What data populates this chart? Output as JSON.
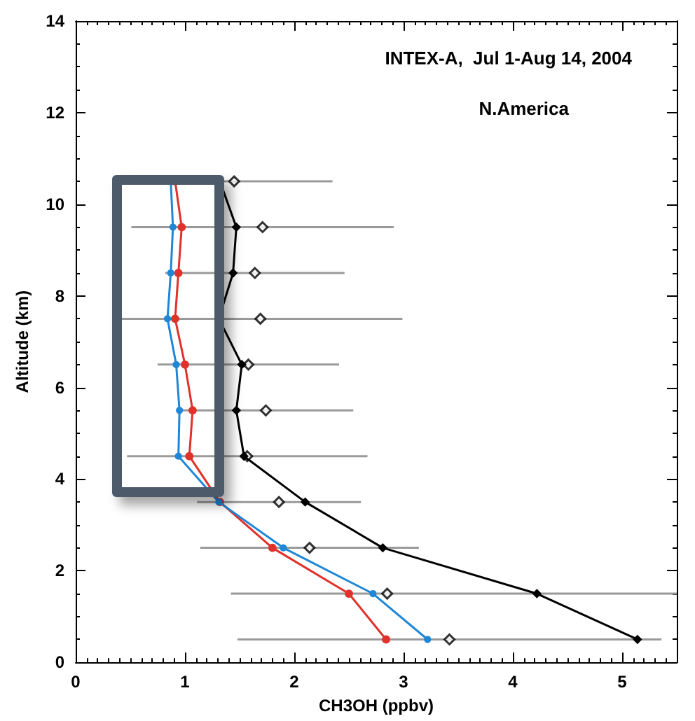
{
  "chart_data": {
    "type": "line",
    "title": "INTEX-A,  Jul 1-Aug 14, 2004",
    "subtitle": "N.America",
    "xlabel": "CH3OH (ppbv)",
    "ylabel": "Altitude (km)",
    "xlim": [
      0,
      5.5
    ],
    "xticks": [
      0,
      1,
      2,
      3,
      4,
      5
    ],
    "ylim": [
      0,
      14
    ],
    "yticks": [
      0,
      2,
      4,
      6,
      8,
      10,
      12,
      14
    ],
    "grid": false,
    "series": [
      {
        "type": "scatter",
        "color": "#000000",
        "marker": "diamond",
        "x": [
          3.42,
          2.85,
          2.14,
          1.86,
          1.57,
          1.74,
          1.58,
          1.69,
          1.64,
          1.71,
          1.45
        ],
        "values": [
          0.5,
          1.5,
          2.5,
          3.5,
          4.5,
          5.5,
          6.5,
          7.5,
          8.5,
          9.5,
          10.5
        ],
        "xerrors": [
          1.94,
          [
            1.42,
            5.5
          ],
          1.0,
          0.75,
          1.1,
          0.8,
          0.83,
          1.3,
          0.82,
          1.2,
          0.9
        ]
      },
      {
        "color": "#000000",
        "marker": "diamond",
        "x": [
          5.14,
          4.22,
          2.81,
          2.1,
          1.54,
          1.47,
          1.52,
          1.31,
          1.44,
          1.47,
          1.32
        ],
        "values": [
          0.5,
          1.5,
          2.5,
          3.5,
          4.5,
          5.5,
          6.5,
          7.5,
          8.5,
          9.5,
          10.5
        ]
      },
      {
        "color": "#e0312a",
        "marker": "circle",
        "x": [
          2.84,
          2.5,
          1.8,
          1.32,
          1.04,
          1.07,
          1.0,
          0.91,
          0.94,
          0.97,
          0.91
        ],
        "values": [
          0.5,
          1.5,
          2.5,
          3.5,
          4.5,
          5.5,
          6.5,
          7.5,
          8.5,
          9.5,
          10.5
        ]
      },
      {
        "color": "#1f87d6",
        "marker": "circle",
        "x": [
          3.22,
          2.72,
          1.9,
          1.31,
          0.94,
          0.95,
          0.92,
          0.84,
          0.87,
          0.89,
          0.87
        ],
        "values": [
          0.5,
          1.5,
          2.5,
          3.5,
          4.5,
          5.5,
          6.5,
          7.5,
          8.5,
          9.5,
          10.5
        ]
      }
    ]
  }
}
